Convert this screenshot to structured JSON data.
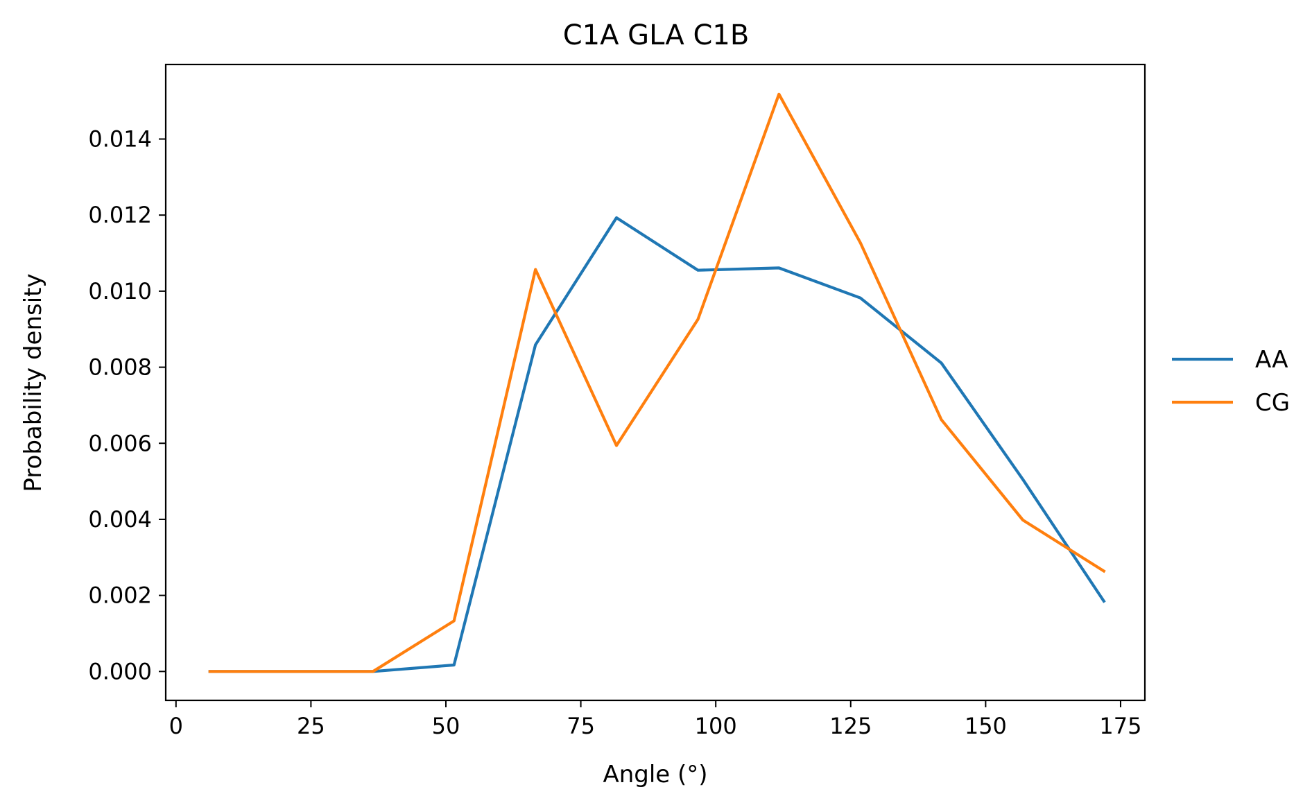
{
  "chart_data": {
    "type": "line",
    "title": "C1A GLA C1B",
    "xlabel": "Angle (°)",
    "ylabel": "Probability density",
    "xlim": [
      -1.9,
      179.5
    ],
    "ylim": [
      -0.00076,
      0.01596
    ],
    "x_ticks": [
      0,
      25,
      50,
      75,
      100,
      125,
      150,
      175
    ],
    "x_tick_labels": [
      "0",
      "25",
      "50",
      "75",
      "100",
      "125",
      "150",
      "175"
    ],
    "y_ticks": [
      0.0,
      0.002,
      0.004,
      0.006,
      0.008,
      0.01,
      0.012,
      0.014
    ],
    "y_tick_labels": [
      "0.000",
      "0.002",
      "0.004",
      "0.006",
      "0.008",
      "0.010",
      "0.012",
      "0.014"
    ],
    "grid": false,
    "legend_position": "outside right",
    "x": [
      6.3,
      21.4,
      36.5,
      51.5,
      66.6,
      81.6,
      96.7,
      111.7,
      126.8,
      141.8,
      156.9,
      171.9
    ],
    "series": [
      {
        "name": "AA",
        "color": "#1f77b4",
        "values": [
          0.0,
          0.0,
          0.0,
          0.00017,
          0.00859,
          0.01193,
          0.01055,
          0.01061,
          0.00982,
          0.00811,
          0.00505,
          0.00185
        ]
      },
      {
        "name": "CG",
        "color": "#ff7f0e",
        "values": [
          0.0,
          0.0,
          0.0,
          0.00133,
          0.01057,
          0.00594,
          0.00926,
          0.01518,
          0.01127,
          0.00662,
          0.00398,
          0.00264
        ]
      }
    ]
  }
}
